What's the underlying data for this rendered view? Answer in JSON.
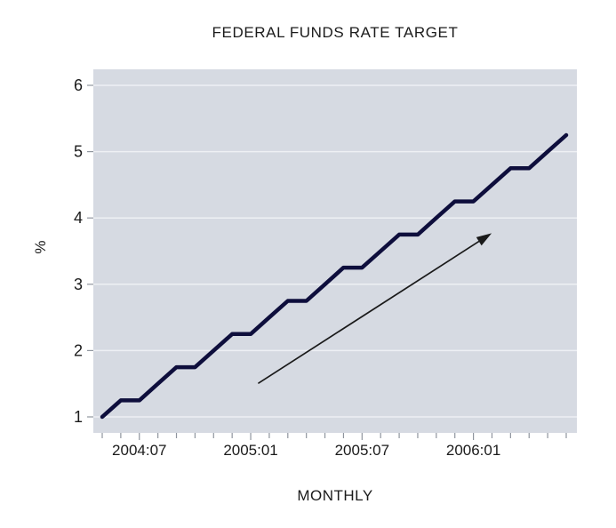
{
  "chart_data": {
    "type": "line",
    "title": "FEDERAL FUNDS RATE TARGET",
    "xlabel": "MONTHLY",
    "ylabel": "%",
    "series_name": "federal-funds-rate-target",
    "x": [
      "2004:05",
      "2004:06",
      "2004:07",
      "2004:08",
      "2004:09",
      "2004:10",
      "2004:11",
      "2004:12",
      "2005:01",
      "2005:02",
      "2005:03",
      "2005:04",
      "2005:05",
      "2005:06",
      "2005:07",
      "2005:08",
      "2005:09",
      "2005:10",
      "2005:11",
      "2005:12",
      "2006:01",
      "2006:02",
      "2006:03",
      "2006:04",
      "2006:05",
      "2006:06"
    ],
    "values": [
      1.0,
      1.25,
      1.25,
      1.5,
      1.75,
      1.75,
      2.0,
      2.25,
      2.25,
      2.5,
      2.75,
      2.75,
      3.0,
      3.25,
      3.25,
      3.5,
      3.75,
      3.75,
      4.0,
      4.25,
      4.25,
      4.5,
      4.75,
      4.75,
      5.0,
      5.25
    ],
    "y_ticks": [
      "1",
      "2",
      "3",
      "4",
      "5",
      "6"
    ],
    "ylim": [
      0.75,
      6.25
    ],
    "x_major_tick_indices": [
      2,
      8,
      14,
      20
    ],
    "grid": true,
    "legend": "none",
    "annotation_arrow": {
      "from": {
        "month_index": 8.43,
        "value": 1.51
      },
      "to": {
        "month_index": 20.98,
        "value": 3.77
      }
    },
    "colors": {
      "plot_bg": "#d6dae2",
      "grid": "#eef0f4",
      "line": "#0e0e3c",
      "tick": "#8f959e",
      "text": "#1b1b1b",
      "arrow": "#1a1a1a"
    }
  }
}
